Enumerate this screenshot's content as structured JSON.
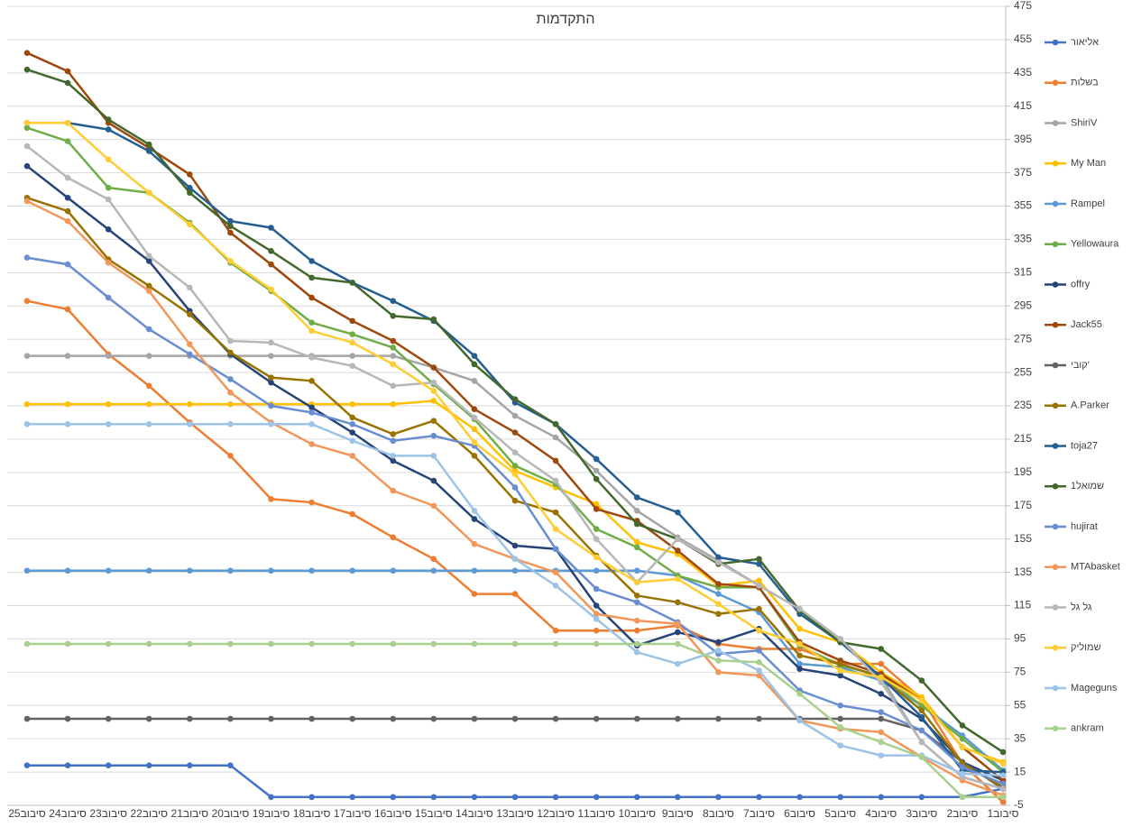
{
  "chart_data": {
    "type": "line",
    "title": "התקדמות",
    "categories": [
      "סיבוב25",
      "סיבוב24",
      "סיבוב23",
      "סיבוב22",
      "סיבוב21",
      "סיבוב20",
      "סיבוב19",
      "סיבוב18",
      "סיבוב17",
      "סיבוב16",
      "סיבוב15",
      "סיבוב14",
      "סיבוב13",
      "סיבוב12",
      "סיבוב11",
      "סיבוב10",
      "סיבוב9",
      "סיבוב8",
      "סיבוב7",
      "סיבוב6",
      "סיבוב5",
      "סיבוב4",
      "סיבוב3",
      "סיבוב2",
      "סיבוב1"
    ],
    "ylim": [
      -5,
      475
    ],
    "yticks": [
      -5,
      15,
      35,
      55,
      75,
      95,
      115,
      135,
      155,
      175,
      195,
      215,
      235,
      255,
      275,
      295,
      315,
      335,
      355,
      375,
      395,
      415,
      435,
      455,
      475
    ],
    "grid": true,
    "legend": "right",
    "series": [
      {
        "name": "אליאור",
        "color": "#4472c4",
        "values": [
          19,
          19,
          19,
          19,
          19,
          19,
          0,
          0,
          0,
          0,
          0,
          0,
          0,
          0,
          0,
          0,
          0,
          0,
          0,
          0,
          0,
          0,
          0,
          0,
          5
        ]
      },
      {
        "name": "בשלות",
        "color": "#ed7d31",
        "values": [
          298,
          293,
          266,
          247,
          225,
          205,
          179,
          177,
          170,
          156,
          143,
          122,
          122,
          100,
          100,
          100,
          103,
          92,
          89,
          89,
          80,
          80,
          59,
          20,
          -3
        ]
      },
      {
        "name": "ShiriV",
        "color": "#a5a5a5",
        "values": [
          265,
          265,
          265,
          265,
          265,
          265,
          265,
          265,
          265,
          265,
          258,
          250,
          229,
          216,
          196,
          172,
          156,
          142,
          127,
          113,
          95,
          72,
          33,
          12,
          5
        ]
      },
      {
        "name": "My Man",
        "color": "#ffc000",
        "values": [
          236,
          236,
          236,
          236,
          236,
          236,
          236,
          236,
          236,
          236,
          238,
          221,
          196,
          186,
          176,
          153,
          146,
          127,
          130,
          101,
          93,
          75,
          60,
          30,
          21
        ]
      },
      {
        "name": "Rampel",
        "color": "#5b9bd5",
        "values": [
          136,
          136,
          136,
          136,
          136,
          136,
          136,
          136,
          136,
          136,
          136,
          136,
          136,
          136,
          136,
          136,
          133,
          122,
          111,
          80,
          78,
          70,
          55,
          37,
          16
        ]
      },
      {
        "name": "Yellowaura",
        "color": "#70ad47",
        "values": [
          402,
          394,
          366,
          363,
          345,
          321,
          304,
          285,
          278,
          270,
          248,
          227,
          199,
          188,
          161,
          150,
          133,
          126,
          126,
          91,
          79,
          73,
          55,
          35,
          15
        ]
      },
      {
        "name": "offry",
        "color": "#264478",
        "values": [
          379,
          360,
          341,
          322,
          292,
          266,
          249,
          234,
          219,
          202,
          190,
          167,
          151,
          149,
          115,
          91,
          99,
          93,
          101,
          77,
          73,
          62,
          47,
          21,
          10
        ]
      },
      {
        "name": "Jack55",
        "color": "#9e480e",
        "values": [
          447,
          436,
          405,
          390,
          374,
          339,
          320,
          300,
          286,
          274,
          258,
          233,
          219,
          202,
          173,
          166,
          148,
          128,
          126,
          93,
          82,
          74,
          58,
          30,
          10
        ]
      },
      {
        "name": "קובי'",
        "color": "#636363",
        "values": [
          47,
          47,
          47,
          47,
          47,
          47,
          47,
          47,
          47,
          47,
          47,
          47,
          47,
          47,
          47,
          47,
          47,
          47,
          47,
          47,
          47,
          47,
          40,
          21,
          5
        ]
      },
      {
        "name": "A.Parker",
        "color": "#997300",
        "values": [
          360,
          352,
          323,
          307,
          290,
          267,
          252,
          250,
          228,
          218,
          226,
          205,
          178,
          171,
          145,
          121,
          117,
          110,
          113,
          85,
          80,
          72,
          52,
          20,
          6
        ]
      },
      {
        "name": "toja27",
        "color": "#255e91",
        "values": [
          405,
          405,
          401,
          388,
          366,
          346,
          342,
          322,
          309,
          298,
          286,
          265,
          237,
          224,
          203,
          180,
          171,
          144,
          140,
          110,
          93,
          72,
          48,
          16,
          15
        ]
      },
      {
        "name": "שמואל1",
        "color": "#43682b",
        "values": [
          437,
          429,
          407,
          392,
          363,
          343,
          328,
          312,
          309,
          289,
          287,
          260,
          239,
          224,
          191,
          164,
          155,
          140,
          143,
          112,
          93,
          89,
          70,
          43,
          27
        ]
      },
      {
        "name": "hujirat",
        "color": "#698ed0",
        "values": [
          324,
          320,
          300,
          281,
          266,
          251,
          235,
          231,
          224,
          214,
          217,
          211,
          186,
          149,
          125,
          117,
          105,
          86,
          88,
          64,
          55,
          51,
          40,
          18,
          8
        ]
      },
      {
        "name": "MTAbasket",
        "color": "#f1975a",
        "values": [
          358,
          346,
          321,
          304,
          272,
          243,
          225,
          212,
          205,
          184,
          175,
          152,
          143,
          135,
          110,
          106,
          104,
          75,
          73,
          46,
          41,
          39,
          24,
          10,
          1
        ]
      },
      {
        "name": "גל גל",
        "color": "#b7b7b7",
        "values": [
          391,
          372,
          359,
          325,
          306,
          274,
          273,
          264,
          259,
          247,
          249,
          228,
          207,
          190,
          155,
          129,
          155,
          141,
          127,
          113,
          95,
          69,
          33,
          12,
          5
        ]
      },
      {
        "name": "שמוליק",
        "color": "#ffcd33",
        "values": [
          405,
          405,
          383,
          363,
          344,
          322,
          305,
          280,
          273,
          260,
          244,
          213,
          194,
          161,
          144,
          129,
          131,
          116,
          100,
          92,
          76,
          72,
          58,
          30,
          20
        ]
      },
      {
        "name": "Mageguns",
        "color": "#9dc3e6",
        "values": [
          224,
          224,
          224,
          224,
          224,
          224,
          224,
          224,
          214,
          205,
          205,
          172,
          143,
          127,
          107,
          87,
          80,
          88,
          76,
          46,
          31,
          25,
          25,
          14,
          13
        ]
      },
      {
        "name": "ankram",
        "color": "#a9d18e",
        "values": [
          92,
          92,
          92,
          92,
          92,
          92,
          92,
          92,
          92,
          92,
          92,
          92,
          92,
          92,
          92,
          92,
          92,
          82,
          81,
          62,
          42,
          33,
          24,
          0,
          0
        ]
      }
    ]
  }
}
